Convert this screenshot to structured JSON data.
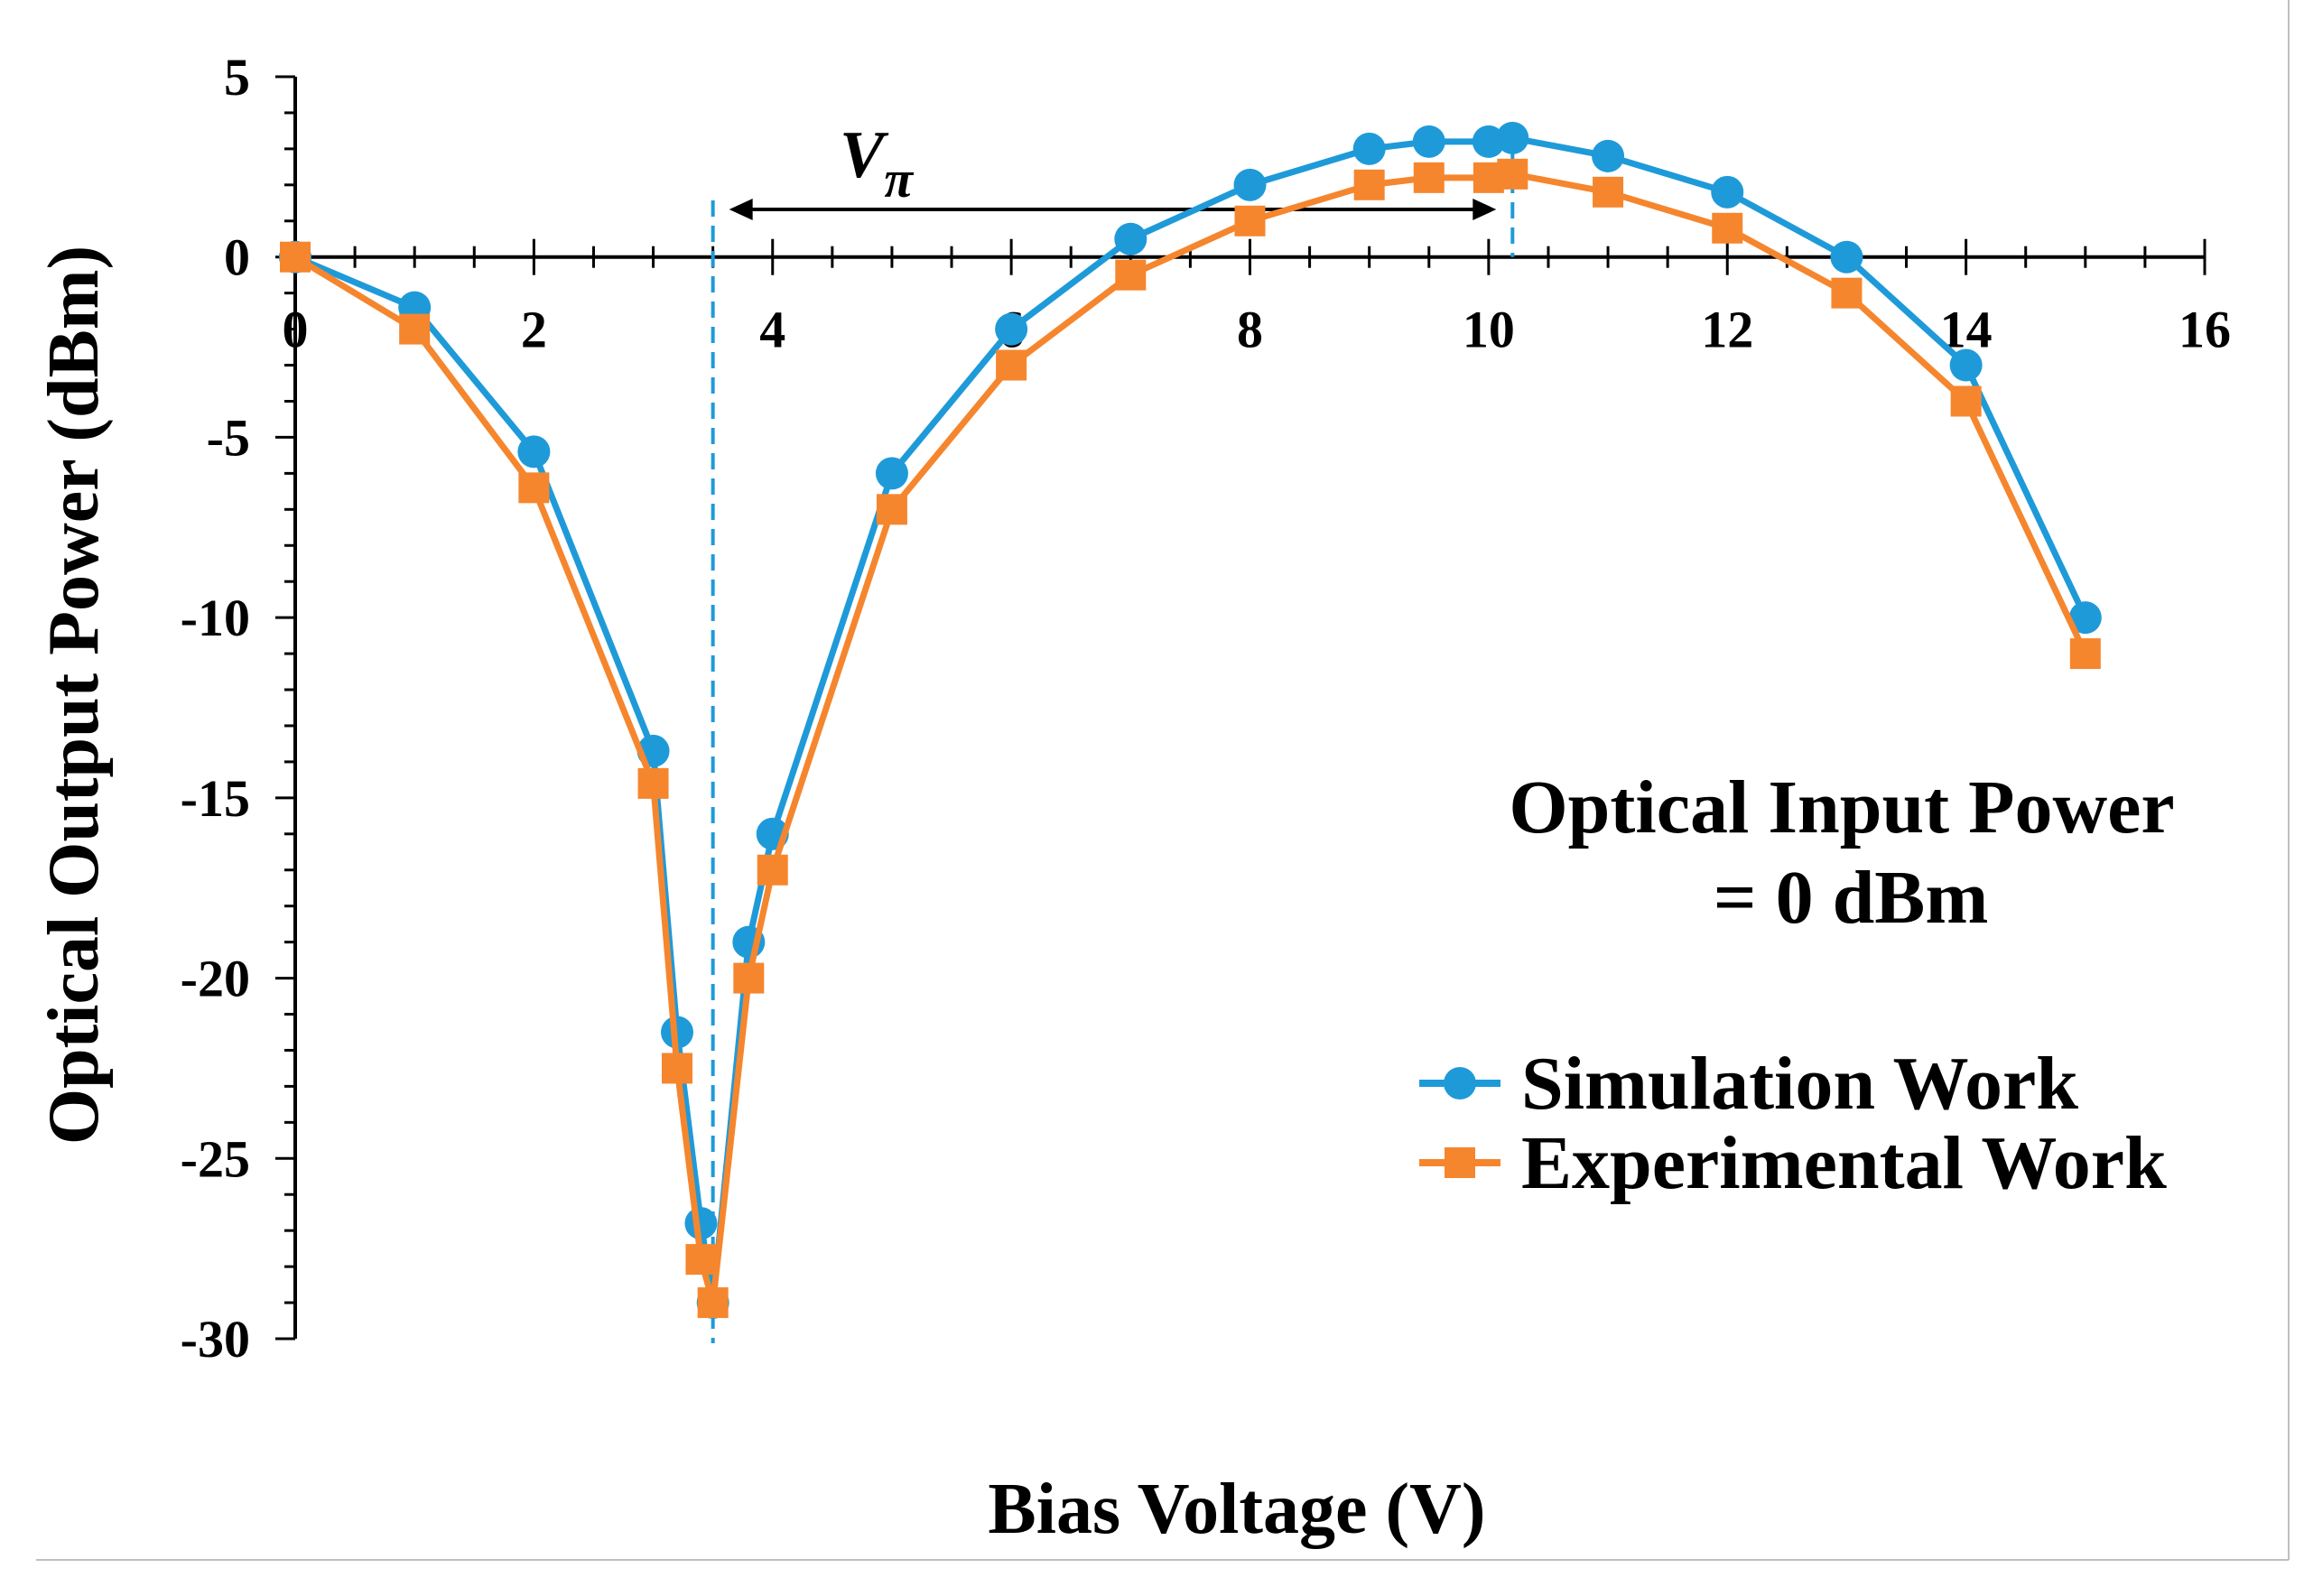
{
  "chart_data": {
    "type": "line",
    "xlabel": "Bias Voltage (V)",
    "ylabel": "Optical Output Power (dBm)",
    "xlim": [
      0,
      16
    ],
    "ylim": [
      -30,
      5
    ],
    "x_ticks": [
      "0",
      "2",
      "4",
      "6",
      "8",
      "10",
      "12",
      "14",
      "16"
    ],
    "y_ticks": [
      "5",
      "0",
      "-5",
      "-10",
      "-15",
      "-20",
      "-25",
      "-30"
    ],
    "x_tick_values": [
      0,
      2,
      4,
      6,
      8,
      10,
      12,
      14,
      16
    ],
    "y_tick_values": [
      5,
      0,
      -5,
      -10,
      -15,
      -20,
      -25,
      -30
    ],
    "series": [
      {
        "name": "Simulation Work",
        "color": "#1f9ad9",
        "marker": "circle",
        "x": [
          0,
          1,
          2,
          3,
          3.2,
          3.4,
          3.5,
          3.8,
          4,
          5,
          6,
          7,
          8,
          9,
          9.5,
          10,
          10.2,
          11,
          12,
          13,
          14,
          15
        ],
        "y": [
          0,
          -1.4,
          -5.4,
          -13.7,
          -21.5,
          -26.8,
          -29,
          -19,
          -16,
          -6,
          -2,
          0.5,
          2,
          3,
          3.2,
          3.2,
          3.3,
          2.8,
          1.8,
          0,
          -3,
          -10
        ]
      },
      {
        "name": "Experimental Work",
        "color": "#f5862e",
        "marker": "square",
        "x": [
          0,
          1,
          2,
          3,
          3.2,
          3.4,
          3.5,
          3.8,
          4,
          5,
          6,
          7,
          8,
          9,
          9.5,
          10,
          10.2,
          11,
          12,
          13,
          14,
          15
        ],
        "y": [
          0,
          -2,
          -6.4,
          -14.6,
          -22.5,
          -27.8,
          -29,
          -20,
          -17,
          -7,
          -3,
          -0.5,
          1,
          2,
          2.2,
          2.2,
          2.3,
          1.8,
          0.8,
          -1,
          -4,
          -11
        ]
      }
    ],
    "annotations": {
      "vpi_label": "V",
      "vpi_subscript": "π",
      "vpi_start_x": 3.5,
      "vpi_end_x": 10.2,
      "vline_color": "#1f9ad9",
      "input_power_line1": "Optical Input Power",
      "input_power_line2": "= 0 dBm"
    },
    "legend": "right"
  }
}
